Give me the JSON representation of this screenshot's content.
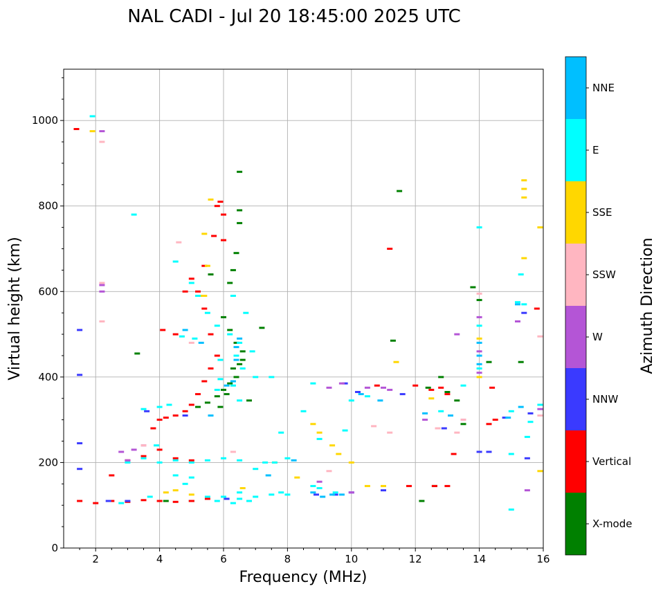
{
  "chart_data": {
    "type": "scatter",
    "title": "NAL CADI - Jul 20 18:45:00 2025 UTC",
    "xlabel": "Frequency (MHz)",
    "ylabel": "Virtual height (km)",
    "xlim": [
      1,
      16
    ],
    "ylim": [
      0,
      1120
    ],
    "xticks": [
      2,
      4,
      6,
      8,
      10,
      12,
      14,
      16
    ],
    "yticks": [
      0,
      200,
      400,
      600,
      800,
      1000
    ],
    "grid": true,
    "colorbar": {
      "label": "Azimuth Direction",
      "categories": [
        "X-mode",
        "Vertical",
        "NNW",
        "W",
        "SSW",
        "SSE",
        "E",
        "NNE"
      ],
      "colors": [
        "#008000",
        "#ff0000",
        "#3a3aff",
        "#b455d6",
        "#ffb6c1",
        "#ffd700",
        "#00ffff",
        "#00bfff"
      ]
    },
    "series": [
      {
        "name": "X-mode",
        "points": [
          [
            5.2,
            330
          ],
          [
            5.5,
            340
          ],
          [
            5.8,
            355
          ],
          [
            6.0,
            370
          ],
          [
            6.2,
            385
          ],
          [
            6.4,
            400
          ],
          [
            6.5,
            430
          ],
          [
            6.6,
            460
          ],
          [
            6.4,
            480
          ],
          [
            6.2,
            510
          ],
          [
            6.0,
            540
          ],
          [
            6.2,
            620
          ],
          [
            6.3,
            650
          ],
          [
            6.4,
            690
          ],
          [
            6.5,
            760
          ],
          [
            6.5,
            790
          ],
          [
            6.5,
            880
          ],
          [
            11.5,
            835
          ],
          [
            14.3,
            435
          ],
          [
            15.3,
            435
          ],
          [
            12.6,
            145
          ],
          [
            12.4,
            375
          ],
          [
            13.0,
            365
          ],
          [
            13.5,
            290
          ],
          [
            12.2,
            110
          ],
          [
            4.2,
            110
          ],
          [
            5.0,
            110
          ],
          [
            3.3,
            455
          ],
          [
            7.2,
            515
          ],
          [
            11.3,
            485
          ],
          [
            13.8,
            610
          ],
          [
            5.6,
            640
          ],
          [
            6.8,
            345
          ],
          [
            5.9,
            330
          ],
          [
            6.1,
            360
          ],
          [
            6.3,
            420
          ],
          [
            6.6,
            440
          ],
          [
            14.0,
            580
          ],
          [
            12.8,
            400
          ],
          [
            13.3,
            345
          ]
        ]
      },
      {
        "name": "Vertical",
        "points": [
          [
            1.4,
            980
          ],
          [
            1.5,
            110
          ],
          [
            2.0,
            105
          ],
          [
            2.5,
            110
          ],
          [
            3.0,
            108
          ],
          [
            3.5,
            112
          ],
          [
            4.0,
            110
          ],
          [
            4.5,
            108
          ],
          [
            5.0,
            110
          ],
          [
            5.5,
            115
          ],
          [
            3.8,
            280
          ],
          [
            4.0,
            300
          ],
          [
            4.2,
            305
          ],
          [
            4.5,
            310
          ],
          [
            4.8,
            320
          ],
          [
            5.0,
            335
          ],
          [
            5.2,
            360
          ],
          [
            5.4,
            390
          ],
          [
            5.6,
            420
          ],
          [
            5.8,
            450
          ],
          [
            5.6,
            500
          ],
          [
            5.4,
            560
          ],
          [
            5.2,
            600
          ],
          [
            5.0,
            630
          ],
          [
            4.8,
            600
          ],
          [
            5.4,
            660
          ],
          [
            5.7,
            730
          ],
          [
            5.8,
            800
          ],
          [
            5.9,
            810
          ],
          [
            6.0,
            780
          ],
          [
            6.0,
            720
          ],
          [
            2.5,
            170
          ],
          [
            3.0,
            205
          ],
          [
            3.5,
            215
          ],
          [
            4.0,
            230
          ],
          [
            4.5,
            210
          ],
          [
            5.0,
            205
          ],
          [
            12.5,
            370
          ],
          [
            12.8,
            375
          ],
          [
            13.0,
            360
          ],
          [
            12.6,
            145
          ],
          [
            13.0,
            145
          ],
          [
            14.3,
            290
          ],
          [
            14.5,
            300
          ],
          [
            15.8,
            560
          ],
          [
            13.2,
            220
          ],
          [
            11.2,
            700
          ],
          [
            4.5,
            500
          ],
          [
            4.1,
            510
          ],
          [
            10.8,
            380
          ],
          [
            11.8,
            145
          ],
          [
            12.0,
            380
          ],
          [
            14.4,
            375
          ]
        ]
      },
      {
        "name": "NNW",
        "points": [
          [
            1.5,
            185
          ],
          [
            1.5,
            405
          ],
          [
            1.5,
            510
          ],
          [
            1.5,
            245
          ],
          [
            2.4,
            110
          ],
          [
            3.0,
            110
          ],
          [
            8.9,
            125
          ],
          [
            9.5,
            125
          ],
          [
            10.0,
            130
          ],
          [
            10.2,
            365
          ],
          [
            14.0,
            225
          ],
          [
            14.3,
            225
          ],
          [
            15.5,
            210
          ],
          [
            15.4,
            550
          ],
          [
            15.6,
            315
          ],
          [
            14.8,
            305
          ],
          [
            11.0,
            135
          ],
          [
            9.8,
            385
          ],
          [
            4.8,
            310
          ],
          [
            3.6,
            320
          ],
          [
            6.1,
            115
          ],
          [
            11.6,
            360
          ],
          [
            12.9,
            280
          ]
        ]
      },
      {
        "name": "W",
        "points": [
          [
            2.2,
            615
          ],
          [
            2.2,
            600
          ],
          [
            2.2,
            975
          ],
          [
            2.8,
            225
          ],
          [
            3.2,
            230
          ],
          [
            3.5,
            240
          ],
          [
            9.0,
            155
          ],
          [
            10.0,
            130
          ],
          [
            10.5,
            375
          ],
          [
            11.0,
            375
          ],
          [
            14.0,
            540
          ],
          [
            14.0,
            460
          ],
          [
            14.0,
            410
          ],
          [
            15.2,
            530
          ],
          [
            15.5,
            135
          ],
          [
            15.9,
            325
          ],
          [
            13.3,
            500
          ],
          [
            13.5,
            300
          ],
          [
            9.3,
            375
          ],
          [
            9.7,
            385
          ],
          [
            3.0,
            205
          ],
          [
            11.2,
            370
          ],
          [
            12.3,
            300
          ]
        ]
      },
      {
        "name": "SSW",
        "points": [
          [
            2.2,
            950
          ],
          [
            2.2,
            620
          ],
          [
            2.2,
            530
          ],
          [
            4.6,
            715
          ],
          [
            3.5,
            240
          ],
          [
            10.7,
            285
          ],
          [
            11.2,
            270
          ],
          [
            13.3,
            270
          ],
          [
            13.5,
            300
          ],
          [
            12.7,
            280
          ],
          [
            14.0,
            595
          ],
          [
            15.9,
            495
          ],
          [
            6.3,
            225
          ],
          [
            15.9,
            310
          ],
          [
            9.3,
            180
          ],
          [
            5.0,
            480
          ]
        ]
      },
      {
        "name": "SSE",
        "points": [
          [
            1.9,
            975
          ],
          [
            5.6,
            815
          ],
          [
            5.4,
            735
          ],
          [
            5.5,
            660
          ],
          [
            5.4,
            590
          ],
          [
            8.8,
            290
          ],
          [
            9.0,
            270
          ],
          [
            9.4,
            240
          ],
          [
            9.6,
            220
          ],
          [
            10.5,
            145
          ],
          [
            10.0,
            200
          ],
          [
            11.0,
            145
          ],
          [
            12.5,
            350
          ],
          [
            14.0,
            490
          ],
          [
            14.0,
            400
          ],
          [
            15.4,
            860
          ],
          [
            15.4,
            840
          ],
          [
            15.4,
            820
          ],
          [
            15.4,
            678
          ],
          [
            15.9,
            750
          ],
          [
            15.9,
            180
          ],
          [
            8.3,
            165
          ],
          [
            4.5,
            135
          ],
          [
            5.0,
            125
          ],
          [
            5.3,
            590
          ],
          [
            11.4,
            435
          ],
          [
            7.6,
            200
          ],
          [
            4.2,
            130
          ],
          [
            6.6,
            140
          ]
        ]
      },
      {
        "name": "E",
        "points": [
          [
            1.9,
            1010
          ],
          [
            3.2,
            780
          ],
          [
            4.5,
            670
          ],
          [
            5.0,
            620
          ],
          [
            5.2,
            590
          ],
          [
            5.5,
            550
          ],
          [
            5.8,
            520
          ],
          [
            6.2,
            500
          ],
          [
            6.5,
            480
          ],
          [
            4.0,
            330
          ],
          [
            3.5,
            325
          ],
          [
            5.8,
            370
          ],
          [
            6.3,
            380
          ],
          [
            6.6,
            420
          ],
          [
            6.5,
            345
          ],
          [
            7.0,
            400
          ],
          [
            7.5,
            400
          ],
          [
            7.8,
            270
          ],
          [
            8.0,
            210
          ],
          [
            7.6,
            200
          ],
          [
            7.0,
            185
          ],
          [
            6.5,
            205
          ],
          [
            6.0,
            210
          ],
          [
            5.5,
            205
          ],
          [
            5.0,
            200
          ],
          [
            4.5,
            205
          ],
          [
            4.0,
            200
          ],
          [
            3.5,
            210
          ],
          [
            3.0,
            200
          ],
          [
            6.0,
            120
          ],
          [
            6.5,
            115
          ],
          [
            7.0,
            120
          ],
          [
            7.5,
            125
          ],
          [
            7.8,
            130
          ],
          [
            8.0,
            125
          ],
          [
            6.8,
            110
          ],
          [
            6.3,
            105
          ],
          [
            5.8,
            110
          ],
          [
            5.5,
            120
          ],
          [
            4.5,
            170
          ],
          [
            5.0,
            165
          ],
          [
            4.8,
            150
          ],
          [
            8.5,
            320
          ],
          [
            8.8,
            145
          ],
          [
            9.0,
            140
          ],
          [
            9.5,
            130
          ],
          [
            8.8,
            385
          ],
          [
            9.8,
            275
          ],
          [
            9.0,
            255
          ],
          [
            10.0,
            345
          ],
          [
            10.5,
            355
          ],
          [
            14.0,
            750
          ],
          [
            14.0,
            420
          ],
          [
            14.0,
            520
          ],
          [
            15.3,
            640
          ],
          [
            15.2,
            575
          ],
          [
            15.4,
            570
          ],
          [
            15.5,
            260
          ],
          [
            15.0,
            220
          ],
          [
            15.0,
            90
          ],
          [
            15.9,
            335
          ],
          [
            15.6,
            295
          ],
          [
            15.0,
            320
          ],
          [
            12.8,
            320
          ],
          [
            13.5,
            380
          ],
          [
            6.7,
            550
          ],
          [
            6.4,
            450
          ],
          [
            5.9,
            440
          ],
          [
            6.3,
            590
          ],
          [
            4.3,
            335
          ],
          [
            3.9,
            240
          ],
          [
            6.9,
            460
          ],
          [
            7.3,
            200
          ],
          [
            5.1,
            490
          ],
          [
            4.7,
            495
          ],
          [
            5.9,
            395
          ],
          [
            6.5,
            130
          ],
          [
            3.7,
            120
          ],
          [
            2.8,
            105
          ]
        ]
      },
      {
        "name": "NNE",
        "points": [
          [
            4.8,
            510
          ],
          [
            5.3,
            480
          ],
          [
            6.5,
            490
          ],
          [
            6.4,
            470
          ],
          [
            6.3,
            390
          ],
          [
            6.1,
            380
          ],
          [
            8.8,
            130
          ],
          [
            9.1,
            120
          ],
          [
            9.4,
            125
          ],
          [
            9.7,
            125
          ],
          [
            14.0,
            480
          ],
          [
            14.0,
            450
          ],
          [
            14.0,
            430
          ],
          [
            15.2,
            570
          ],
          [
            15.3,
            330
          ],
          [
            14.9,
            305
          ],
          [
            6.4,
            440
          ],
          [
            5.6,
            310
          ],
          [
            7.4,
            170
          ],
          [
            8.2,
            205
          ],
          [
            10.3,
            360
          ],
          [
            12.3,
            315
          ],
          [
            10.9,
            345
          ],
          [
            13.1,
            310
          ]
        ]
      }
    ]
  }
}
